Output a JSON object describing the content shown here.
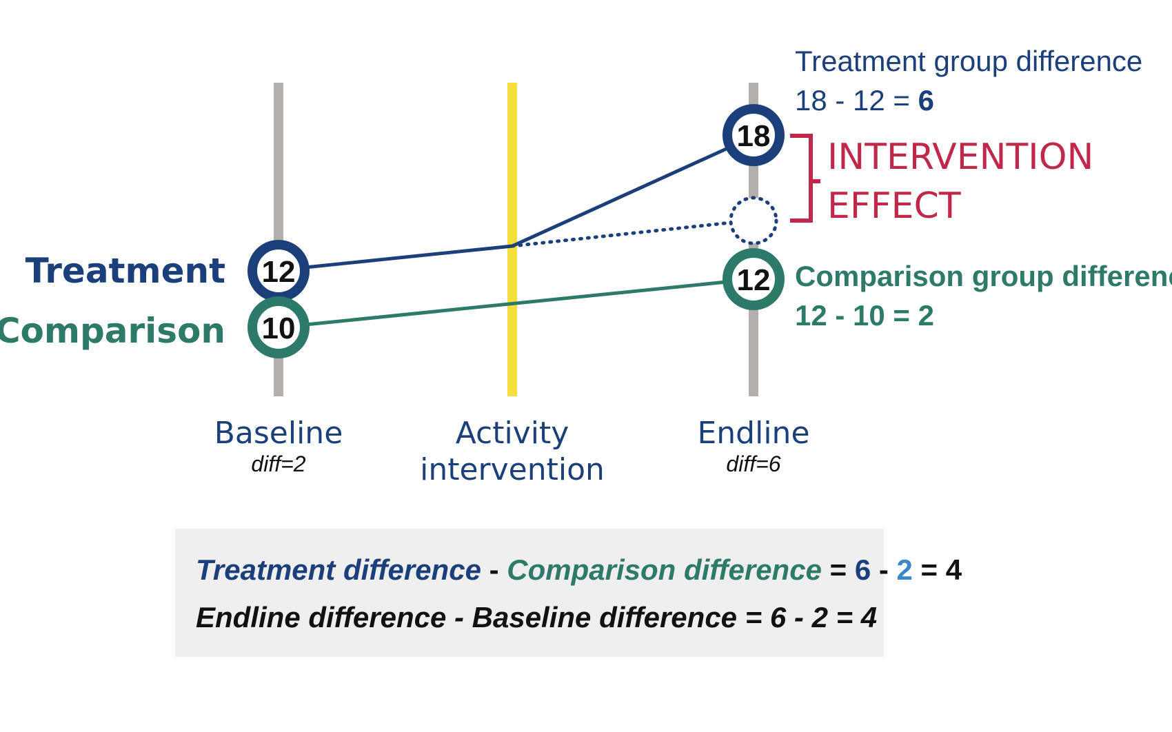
{
  "colors": {
    "treatment": "#1b3f7a",
    "comparison": "#2e7a68",
    "effect": "#c0284a",
    "activity_line": "#f5df3b",
    "timeline": "#b3afac",
    "summary_bg": "#efefef",
    "emphasis_blue": "#3a86c8",
    "text": "#111111"
  },
  "groups": {
    "treatment_label": "Treatment",
    "comparison_label": "Comparison"
  },
  "timepoints": {
    "baseline": {
      "label": "Baseline",
      "diff": "diff=2"
    },
    "activity": {
      "label_line1": "Activity",
      "label_line2": "intervention"
    },
    "endline": {
      "label": "Endline",
      "diff": "diff=6"
    }
  },
  "values": {
    "treatment_baseline": "12",
    "comparison_baseline": "10",
    "treatment_endline": "18",
    "comparison_endline": "12"
  },
  "annotations": {
    "treatment_diff_title": "Treatment group difference",
    "treatment_diff_expr": "18 - 12 = ",
    "treatment_diff_result": "6",
    "comparison_diff_title": "Comparison group difference",
    "comparison_diff_expr": "12 - 10 = 2",
    "effect_line1": "INTERVENTION",
    "effect_line2": "EFFECT"
  },
  "summary": {
    "line1": {
      "treatment_term": "Treatment difference",
      "minus": " - ",
      "comparison_term": "Comparison difference",
      "equals": " = ",
      "val_a": "6",
      "minus2": " - ",
      "val_b": "2",
      "result": " = 4"
    },
    "line2": "Endline difference - Baseline difference = 6 - 2 = 4"
  }
}
